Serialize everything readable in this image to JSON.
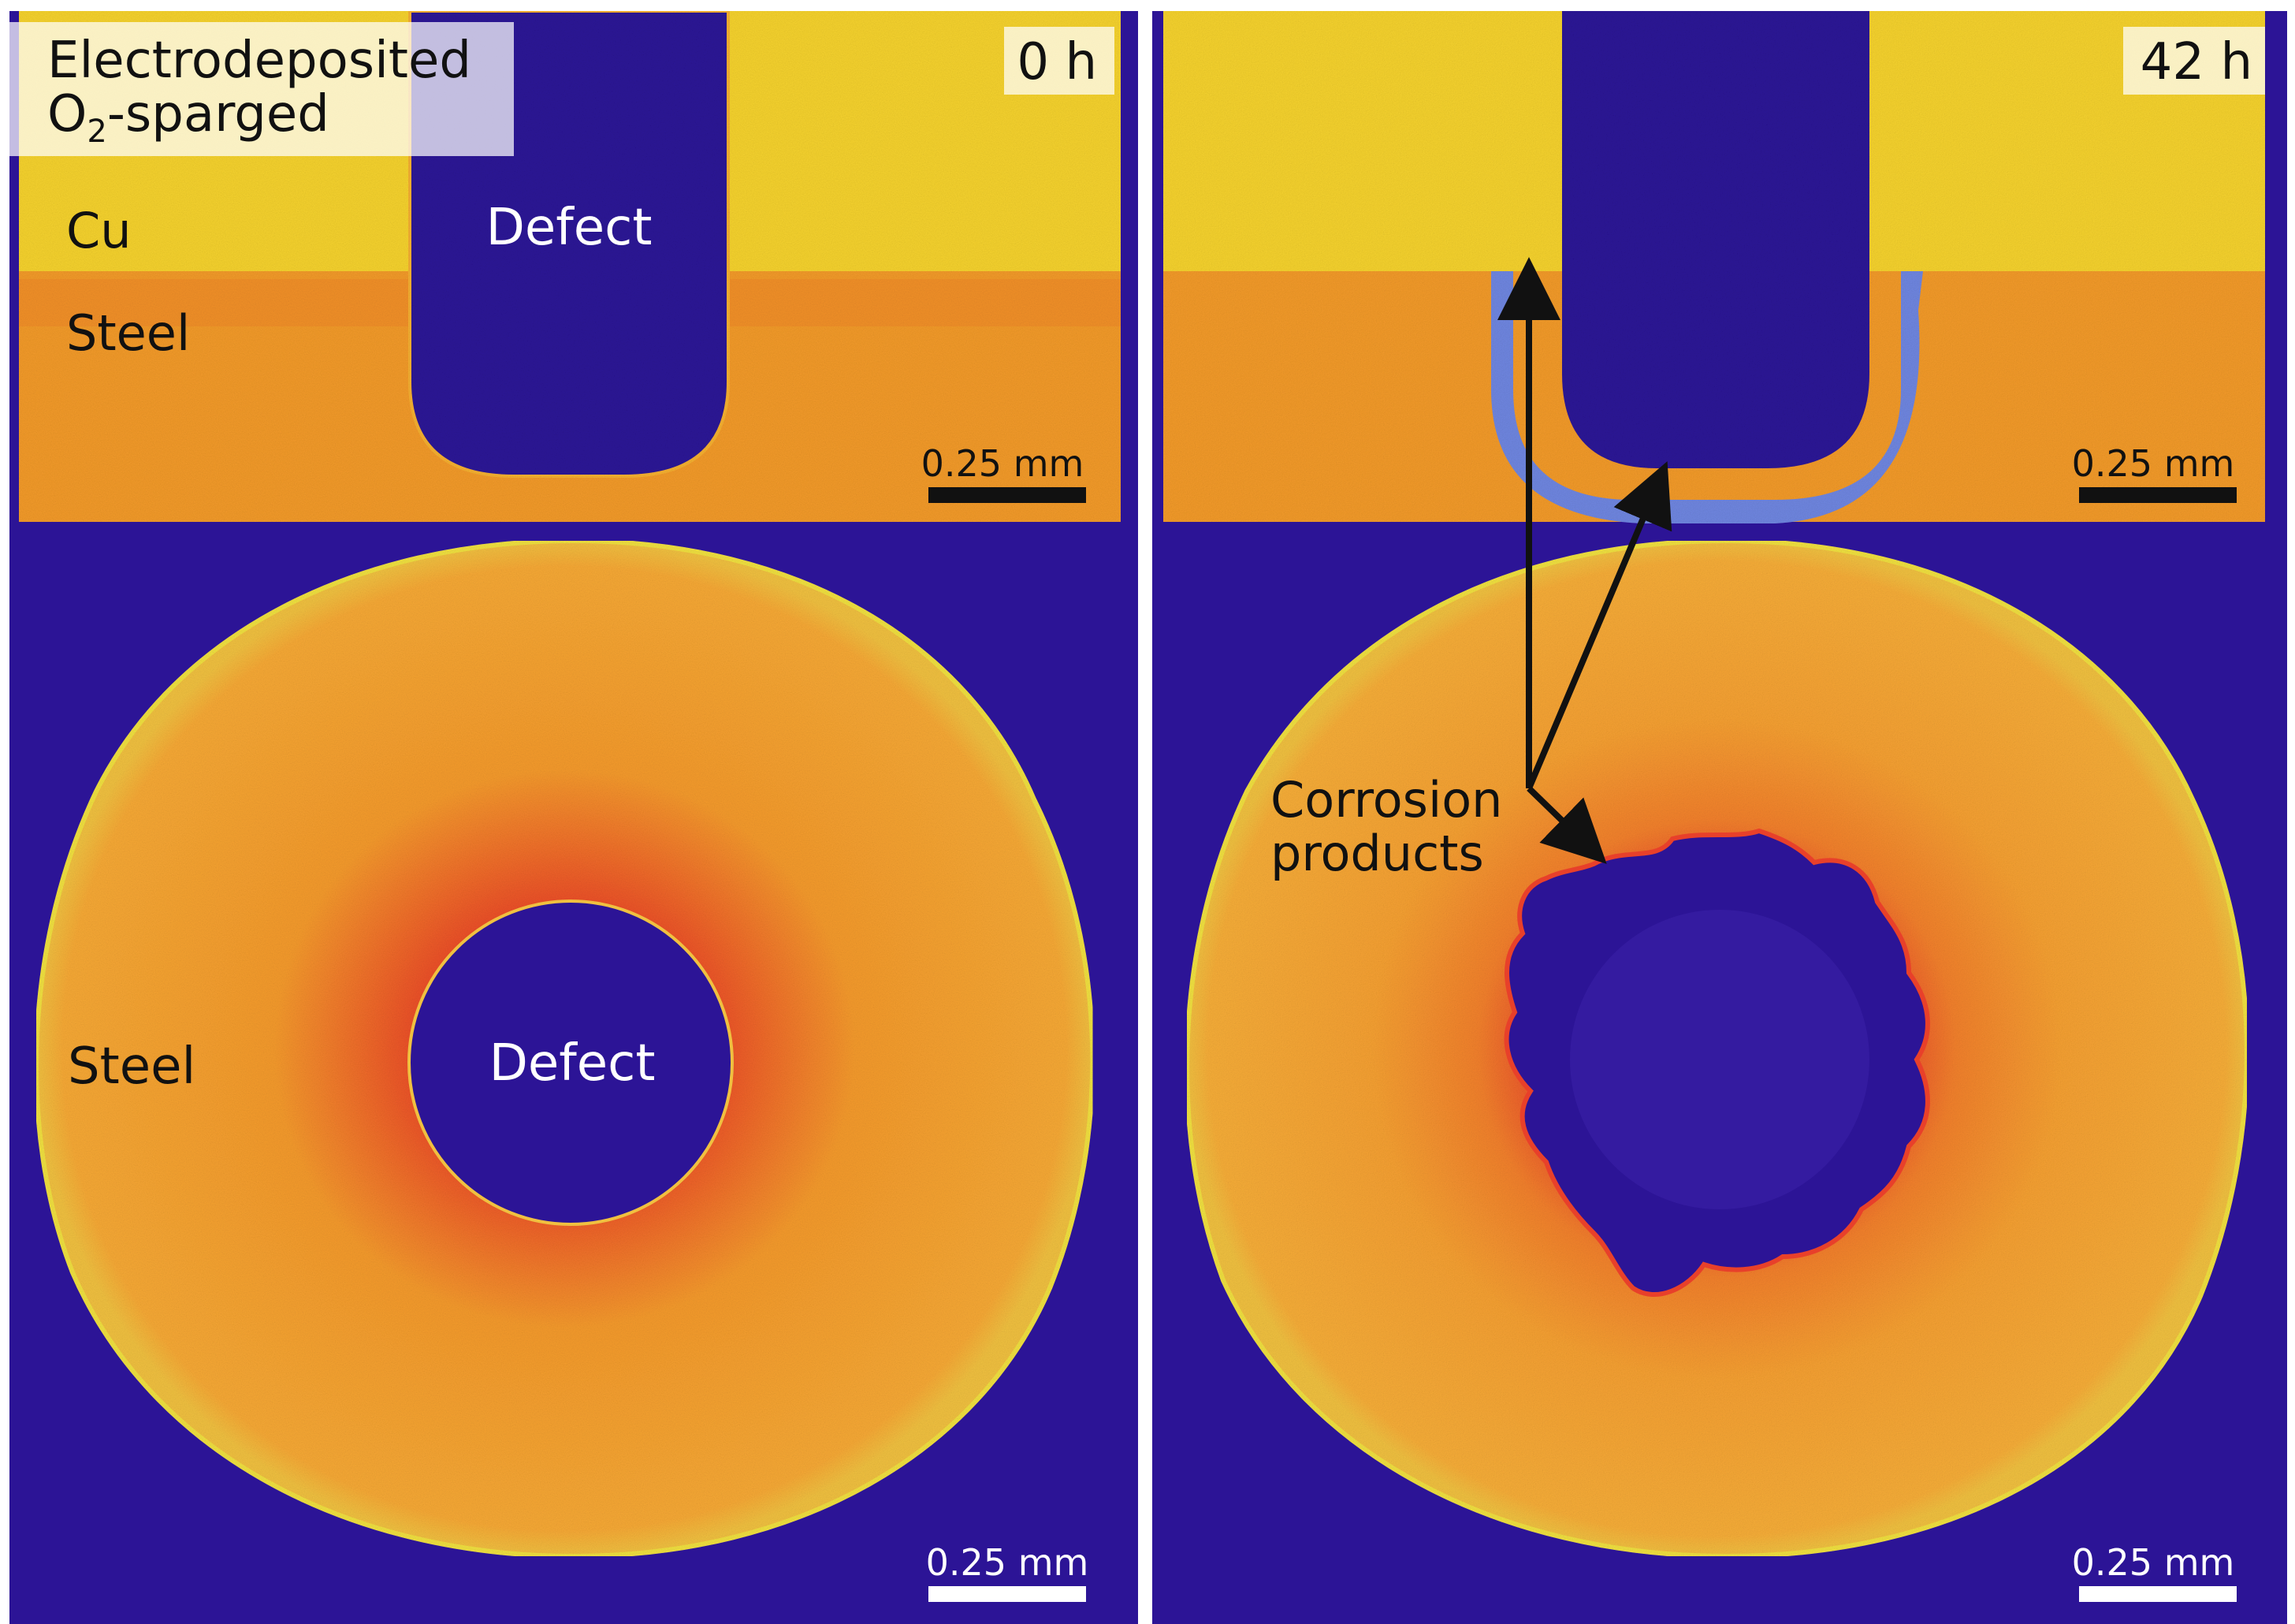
{
  "panels": {
    "left": {
      "time_label": "0 h",
      "condition_line1": "Electrodeposited",
      "condition_line2_main": "O",
      "condition_line2_sub": "2",
      "condition_line2_rest": "-sparged",
      "label_cu": "Cu",
      "label_steel_top": "Steel",
      "label_defect_top": "Defect",
      "label_steel_bottom": "Steel",
      "label_defect_bottom": "Defect",
      "scalebar_top": "0.25 mm",
      "scalebar_bottom": "0.25 mm"
    },
    "right": {
      "time_label": "42 h",
      "annotation_line1": "Corrosion",
      "annotation_line2": "products",
      "scalebar_top": "0.25 mm",
      "scalebar_bottom": "0.25 mm"
    }
  },
  "colors": {
    "background_purple": "#2c1496",
    "copper_yellow": "#f5d22e",
    "steel_orange": "#f29a2a",
    "defect_blue": "#2c1496",
    "corrosion_light_blue": "#6f86e0",
    "red_halo": "#e8402a"
  }
}
